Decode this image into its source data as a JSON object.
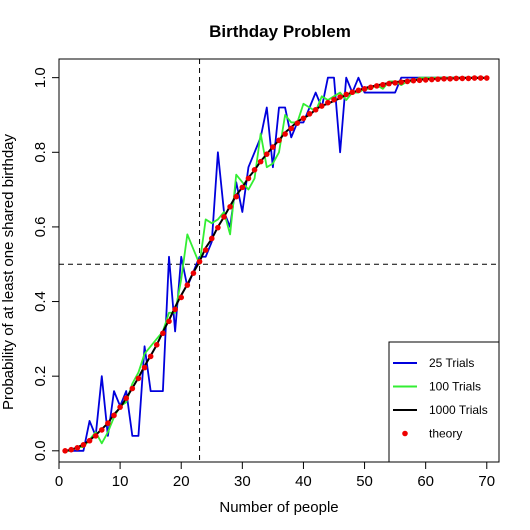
{
  "chart_data": {
    "type": "line",
    "title": "Birthday Problem",
    "xlabel": "Number of people",
    "ylabel": "Probability of at least one shared birthday",
    "xlim": [
      0,
      72
    ],
    "ylim": [
      -0.03,
      1.05
    ],
    "xticks": [
      0,
      10,
      20,
      30,
      40,
      50,
      60,
      70
    ],
    "yticks": [
      0.0,
      0.2,
      0.4,
      0.6,
      0.8,
      1.0
    ],
    "xtick_labels": [
      "0",
      "10",
      "20",
      "30",
      "40",
      "50",
      "60",
      "70"
    ],
    "ytick_labels": [
      "0.0",
      "0.2",
      "0.4",
      "0.6",
      "0.8",
      "1.0"
    ],
    "grid": false,
    "legend_position": "bottom-right",
    "reference_lines": {
      "vertical_x": 23,
      "horizontal_y": 0.5
    },
    "x": [
      1,
      2,
      3,
      4,
      5,
      6,
      7,
      8,
      9,
      10,
      11,
      12,
      13,
      14,
      15,
      16,
      17,
      18,
      19,
      20,
      21,
      22,
      23,
      24,
      25,
      26,
      27,
      28,
      29,
      30,
      31,
      32,
      33,
      34,
      35,
      36,
      37,
      38,
      39,
      40,
      41,
      42,
      43,
      44,
      45,
      46,
      47,
      48,
      49,
      50,
      51,
      52,
      53,
      54,
      55,
      56,
      57,
      58,
      59,
      60,
      61,
      62,
      63,
      64,
      65,
      66,
      67,
      68,
      69,
      70
    ],
    "series": [
      {
        "name": "25 Trials",
        "color": "#0000dd",
        "style": "line",
        "values": [
          0,
          0,
          0,
          0,
          0.08,
          0.04,
          0.2,
          0.04,
          0.16,
          0.12,
          0.16,
          0.04,
          0.04,
          0.28,
          0.16,
          0.16,
          0.16,
          0.52,
          0.32,
          0.52,
          0.44,
          0.48,
          0.52,
          0.52,
          0.56,
          0.8,
          0.64,
          0.6,
          0.72,
          0.64,
          0.76,
          0.8,
          0.84,
          0.92,
          0.76,
          0.92,
          0.92,
          0.84,
          0.88,
          0.88,
          0.92,
          0.96,
          0.92,
          1.0,
          1.0,
          0.8,
          1.0,
          0.96,
          1.0,
          0.96,
          0.96,
          0.96,
          0.96,
          0.96,
          0.96,
          1.0,
          1.0,
          1.0,
          1.0,
          1.0,
          1.0,
          1.0,
          1.0,
          1.0,
          1.0,
          1.0,
          1.0,
          1.0,
          1.0,
          1.0
        ]
      },
      {
        "name": "100 Trials",
        "color": "#33ee33",
        "style": "line",
        "values": [
          0,
          0,
          0.01,
          0.01,
          0.03,
          0.05,
          0.02,
          0.05,
          0.09,
          0.12,
          0.13,
          0.18,
          0.21,
          0.26,
          0.28,
          0.3,
          0.32,
          0.37,
          0.37,
          0.46,
          0.58,
          0.54,
          0.5,
          0.62,
          0.61,
          0.62,
          0.64,
          0.58,
          0.74,
          0.72,
          0.7,
          0.73,
          0.85,
          0.76,
          0.77,
          0.8,
          0.9,
          0.88,
          0.88,
          0.93,
          0.92,
          0.91,
          0.95,
          0.94,
          0.95,
          0.96,
          0.94,
          0.96,
          0.96,
          0.97,
          0.97,
          0.98,
          0.97,
          0.99,
          0.99,
          0.98,
          0.99,
          0.99,
          1.0,
          1.0,
          1.0,
          1.0,
          1.0,
          1.0,
          1.0,
          1.0,
          1.0,
          1.0,
          1.0,
          1.0
        ]
      },
      {
        "name": "1000 Trials",
        "color": "#000000",
        "style": "line",
        "values": [
          0,
          0.003,
          0.009,
          0.017,
          0.028,
          0.042,
          0.058,
          0.074,
          0.098,
          0.115,
          0.141,
          0.168,
          0.196,
          0.227,
          0.255,
          0.284,
          0.319,
          0.35,
          0.385,
          0.417,
          0.446,
          0.478,
          0.507,
          0.544,
          0.568,
          0.6,
          0.627,
          0.656,
          0.685,
          0.706,
          0.732,
          0.752,
          0.776,
          0.795,
          0.815,
          0.832,
          0.853,
          0.867,
          0.882,
          0.892,
          0.9,
          0.915,
          0.925,
          0.93,
          0.938,
          0.945,
          0.955,
          0.96,
          0.966,
          0.972,
          0.976,
          0.979,
          0.983,
          0.985,
          0.988,
          0.99,
          0.992,
          0.993,
          0.994,
          0.996,
          0.996,
          0.997,
          0.998,
          0.998,
          0.998,
          0.999,
          0.999,
          0.999,
          0.999,
          0.999
        ]
      },
      {
        "name": "theory",
        "color": "#ee0000",
        "style": "points",
        "values": [
          0,
          0.003,
          0.008,
          0.016,
          0.027,
          0.04,
          0.056,
          0.074,
          0.095,
          0.117,
          0.141,
          0.167,
          0.194,
          0.223,
          0.253,
          0.284,
          0.315,
          0.347,
          0.379,
          0.411,
          0.444,
          0.476,
          0.507,
          0.538,
          0.569,
          0.598,
          0.627,
          0.654,
          0.681,
          0.706,
          0.73,
          0.753,
          0.775,
          0.795,
          0.814,
          0.832,
          0.849,
          0.864,
          0.878,
          0.891,
          0.903,
          0.914,
          0.924,
          0.933,
          0.941,
          0.948,
          0.955,
          0.961,
          0.966,
          0.97,
          0.974,
          0.978,
          0.981,
          0.984,
          0.986,
          0.988,
          0.99,
          0.992,
          0.993,
          0.994,
          0.995,
          0.996,
          0.997,
          0.997,
          0.998,
          0.998,
          0.998,
          0.999,
          0.999,
          0.999
        ]
      }
    ]
  }
}
